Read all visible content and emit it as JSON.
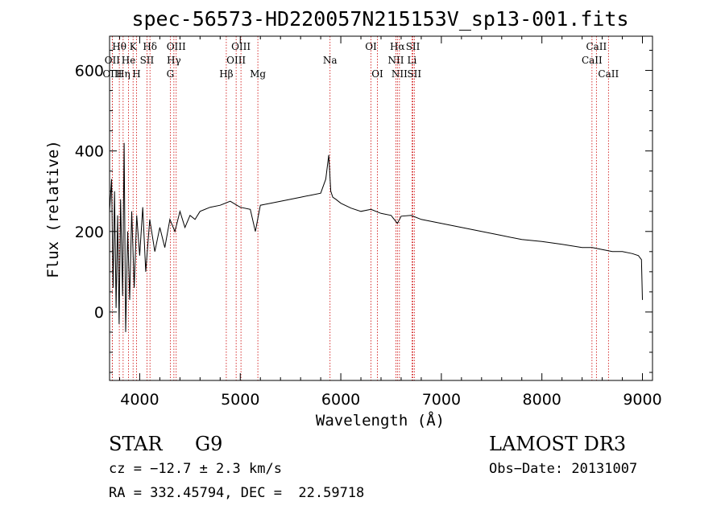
{
  "chart_data": {
    "type": "line",
    "title": "spec-56573-HD220057N215153V_sp13-001.fits",
    "xlabel": "Wavelength (Å)",
    "ylabel": "Flux (relative)",
    "xlim": [
      3700,
      9100
    ],
    "ylim": [
      -170,
      685
    ],
    "xticks": [
      4000,
      5000,
      6000,
      7000,
      8000,
      9000
    ],
    "yticks": [
      0,
      200,
      400,
      600
    ],
    "series": [
      {
        "name": "flux",
        "x": [
          3700,
          3720,
          3735,
          3750,
          3765,
          3780,
          3795,
          3810,
          3830,
          3845,
          3860,
          3880,
          3900,
          3920,
          3945,
          3970,
          4000,
          4030,
          4060,
          4100,
          4150,
          4200,
          4250,
          4300,
          4350,
          4400,
          4450,
          4500,
          4550,
          4600,
          4700,
          4800,
          4900,
          5000,
          5100,
          5150,
          5200,
          5300,
          5400,
          5500,
          5600,
          5700,
          5800,
          5850,
          5880,
          5900,
          5920,
          5950,
          6000,
          6100,
          6200,
          6300,
          6400,
          6500,
          6563,
          6600,
          6700,
          6800,
          7000,
          7200,
          7400,
          7600,
          7800,
          8000,
          8200,
          8400,
          8500,
          8600,
          8700,
          8800,
          8900,
          8960,
          8990,
          9000
        ],
        "y": [
          250,
          330,
          60,
          300,
          10,
          240,
          -30,
          280,
          40,
          420,
          -50,
          200,
          30,
          250,
          60,
          240,
          140,
          260,
          100,
          230,
          150,
          210,
          160,
          230,
          200,
          250,
          210,
          240,
          230,
          250,
          260,
          265,
          275,
          260,
          255,
          200,
          265,
          270,
          275,
          280,
          285,
          290,
          295,
          330,
          390,
          300,
          285,
          280,
          270,
          258,
          250,
          255,
          245,
          240,
          220,
          238,
          240,
          230,
          220,
          210,
          200,
          190,
          180,
          175,
          168,
          160,
          160,
          155,
          150,
          150,
          145,
          140,
          130,
          30
        ]
      }
    ],
    "spectral_lines": [
      {
        "label": "Hθ",
        "x": 3797,
        "row": 1
      },
      {
        "label": "OII",
        "x": 3727,
        "row": 2
      },
      {
        "label": "OIII",
        "x": 3727,
        "row": 3
      },
      {
        "label": "He",
        "x": 3889,
        "row": 2
      },
      {
        "label": "Hη",
        "x": 3835,
        "row": 3
      },
      {
        "label": "K",
        "x": 3934,
        "row": 1
      },
      {
        "label": "H",
        "x": 3968,
        "row": 3
      },
      {
        "label": "SII",
        "x": 4072,
        "row": 2
      },
      {
        "label": "Hδ",
        "x": 4102,
        "row": 1
      },
      {
        "label": "OIII",
        "x": 4363,
        "row": 1
      },
      {
        "label": "Hγ",
        "x": 4340,
        "row": 2
      },
      {
        "label": "G",
        "x": 4304,
        "row": 3
      },
      {
        "label": "Hβ",
        "x": 4861,
        "row": 3
      },
      {
        "label": "OIII",
        "x": 5007,
        "row": 1
      },
      {
        "label": "OIII",
        "x": 4959,
        "row": 2
      },
      {
        "label": "Mg",
        "x": 5175,
        "row": 3
      },
      {
        "label": "Na",
        "x": 5893,
        "row": 2
      },
      {
        "label": "OI",
        "x": 6300,
        "row": 1
      },
      {
        "label": "OI",
        "x": 6364,
        "row": 3
      },
      {
        "label": "Hα",
        "x": 6563,
        "row": 1
      },
      {
        "label": "NII",
        "x": 6548,
        "row": 2
      },
      {
        "label": "NII",
        "x": 6583,
        "row": 3
      },
      {
        "label": "SII",
        "x": 6717,
        "row": 1
      },
      {
        "label": "Li",
        "x": 6708,
        "row": 2
      },
      {
        "label": "SII",
        "x": 6731,
        "row": 3
      },
      {
        "label": "CaII",
        "x": 8542,
        "row": 1
      },
      {
        "label": "CaII",
        "x": 8498,
        "row": 2
      },
      {
        "label": "CaII",
        "x": 8662,
        "row": 3
      }
    ]
  },
  "info": {
    "class": "STAR",
    "subclass": "G9",
    "survey": "LAMOST DR3",
    "cz": "cz = −12.7 ± 2.3 km/s",
    "obs_date": "Obs−Date: 20131007",
    "coords": "RA = 332.45794, DEC =  22.59718"
  },
  "colors": {
    "line": "#000000",
    "marker": "#cc0000",
    "axis": "#000000"
  }
}
